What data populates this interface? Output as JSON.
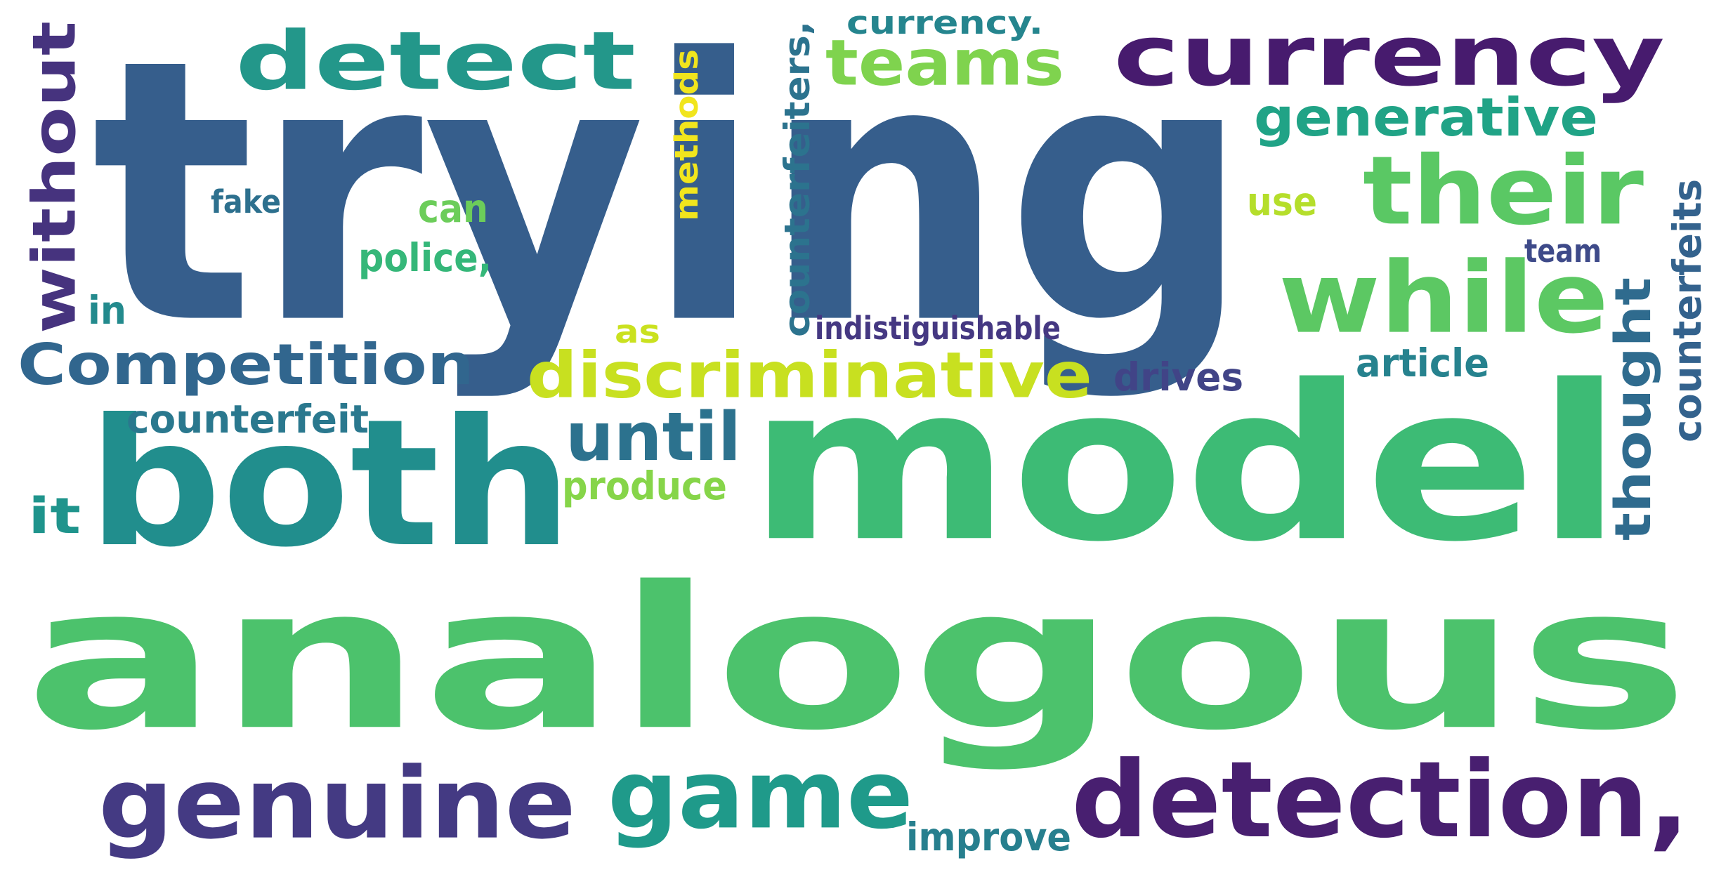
{
  "word_cloud": {
    "words": [
      {
        "id": "trying",
        "text": "trying",
        "color": "#365e8c",
        "vertical": false
      },
      {
        "id": "analogous",
        "text": "analogous",
        "color": "#4cc26c",
        "vertical": false
      },
      {
        "id": "model",
        "text": "model",
        "color": "#3dbb75",
        "vertical": false
      },
      {
        "id": "both",
        "text": "both",
        "color": "#218e8d",
        "vertical": false
      },
      {
        "id": "detection",
        "text": "detection,",
        "color": "#481f70",
        "vertical": false
      },
      {
        "id": "currency",
        "text": "currency",
        "color": "#471b6e",
        "vertical": false
      },
      {
        "id": "genuine",
        "text": "genuine",
        "color": "#443a83",
        "vertical": false
      },
      {
        "id": "game",
        "text": "game",
        "color": "#1f9a8a",
        "vertical": false
      },
      {
        "id": "detect",
        "text": "detect",
        "color": "#23978a",
        "vertical": false
      },
      {
        "id": "their",
        "text": "their",
        "color": "#5ac864",
        "vertical": false
      },
      {
        "id": "while",
        "text": "while",
        "color": "#5cc863",
        "vertical": false
      },
      {
        "id": "discriminative",
        "text": "discriminative",
        "color": "#c8e020",
        "vertical": false
      },
      {
        "id": "competition",
        "text": "Competition",
        "color": "#31668e",
        "vertical": false
      },
      {
        "id": "teams",
        "text": "teams",
        "color": "#7fd34e",
        "vertical": false
      },
      {
        "id": "until",
        "text": "until",
        "color": "#2c728e",
        "vertical": false
      },
      {
        "id": "generative",
        "text": "generative",
        "color": "#20a386",
        "vertical": false
      },
      {
        "id": "without",
        "text": "without",
        "color": "#46337e",
        "vertical": true
      },
      {
        "id": "thought",
        "text": "thought",
        "color": "#2f6b8e",
        "vertical": true
      },
      {
        "id": "counterfeiters",
        "text": "counterfeiters,",
        "color": "#2c738e",
        "vertical": true
      },
      {
        "id": "counterfeits",
        "text": "counterfeits",
        "color": "#33628d",
        "vertical": true
      },
      {
        "id": "methods",
        "text": "methods",
        "color": "#f1e51d",
        "vertical": true
      },
      {
        "id": "counterfeit",
        "text": "counterfeit",
        "color": "#2a788e",
        "vertical": false
      },
      {
        "id": "produce",
        "text": "produce",
        "color": "#86d549",
        "vertical": false
      },
      {
        "id": "improve",
        "text": "improve",
        "color": "#277f8e",
        "vertical": false
      },
      {
        "id": "article",
        "text": "article",
        "color": "#26828e",
        "vertical": false
      },
      {
        "id": "drives",
        "text": "drives",
        "color": "#414487",
        "vertical": false
      },
      {
        "id": "police",
        "text": "police,",
        "color": "#35b779",
        "vertical": false
      },
      {
        "id": "currency-period",
        "text": "currency.",
        "color": "#25858e",
        "vertical": false
      },
      {
        "id": "indistiguishable",
        "text": "indistiguishable",
        "color": "#453882",
        "vertical": false
      },
      {
        "id": "can",
        "text": "can",
        "color": "#6ccd5a",
        "vertical": false
      },
      {
        "id": "fake",
        "text": "fake",
        "color": "#2d708e",
        "vertical": false
      },
      {
        "id": "use",
        "text": "use",
        "color": "#b5de2b",
        "vertical": false
      },
      {
        "id": "as",
        "text": "as",
        "color": "#cae11f",
        "vertical": false
      },
      {
        "id": "team",
        "text": "team",
        "color": "#3e4a89",
        "vertical": false
      },
      {
        "id": "it",
        "text": "it",
        "color": "#1f948c",
        "vertical": false
      },
      {
        "id": "in",
        "text": "in",
        "color": "#238a8d",
        "vertical": false
      }
    ]
  }
}
